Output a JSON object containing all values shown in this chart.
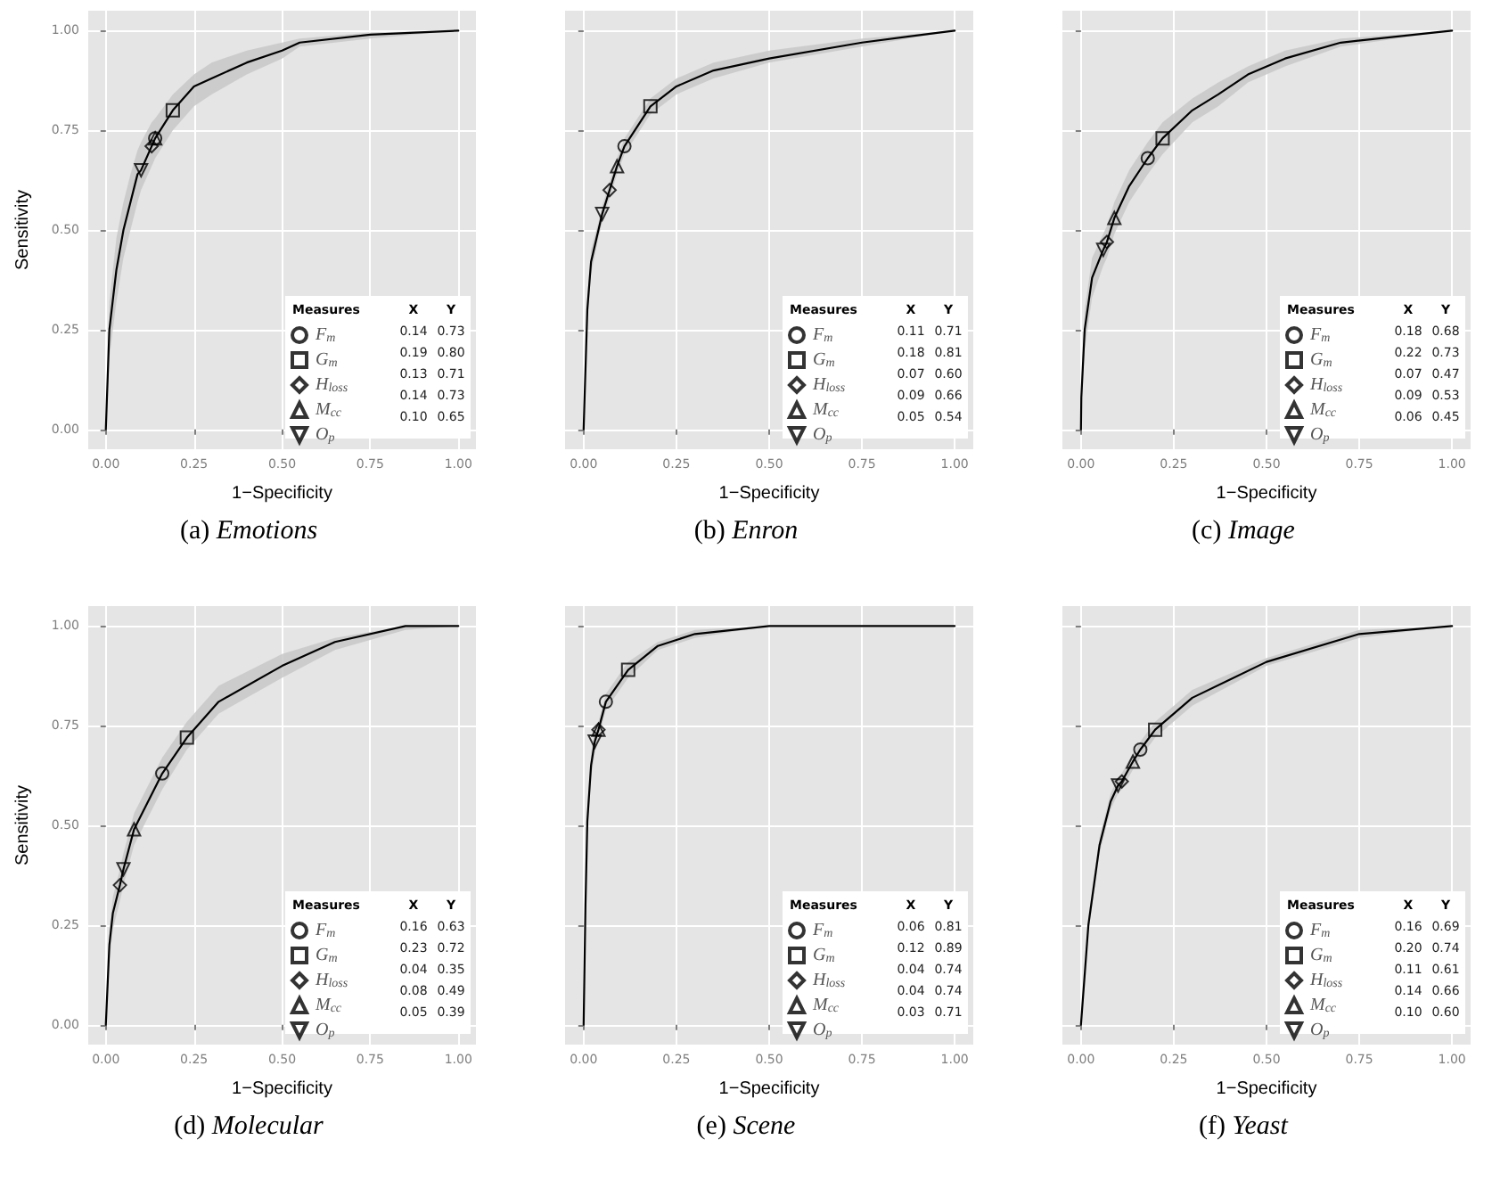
{
  "chart_data": [
    {
      "type": "line",
      "title": "(a) Emotions",
      "xlabel": "1−Specificity",
      "ylabel": "Sensitivity",
      "legend_title": "Measures",
      "annotations": [
        "X",
        "Y",
        "0.14",
        "0.73",
        "0.19",
        "0.80",
        "0.13",
        "0.71",
        "0.14",
        "0.73",
        "0.10",
        "0.65"
      ],
      "legend": "bottom right",
      "grid": true,
      "xlim": [
        -0.05,
        1.05
      ],
      "ylim": [
        -0.05,
        1.05
      ],
      "xticks": [
        {
          "value": 0,
          "label": "0.00"
        },
        {
          "value": 0.25,
          "label": "0.25"
        },
        {
          "value": 0.5,
          "label": "0.50"
        },
        {
          "value": 0.75,
          "label": "0.75"
        },
        {
          "value": 1,
          "label": "1.00"
        }
      ],
      "yticks": [
        {
          "value": 0,
          "label": "0.00"
        },
        {
          "value": 0.25,
          "label": "0.25"
        },
        {
          "value": 0.5,
          "label": "0.50"
        },
        {
          "value": 0.75,
          "label": "0.75"
        },
        {
          "value": 1,
          "label": "1.00"
        }
      ],
      "series": [
        {
          "color": "#000000",
          "x": [
            0,
            0.01,
            0.03,
            0.05,
            0.07,
            0.09,
            0.1,
            0.13,
            0.14,
            0.19,
            0.25,
            0.3,
            0.4,
            0.5,
            0.55,
            0.75,
            1
          ],
          "values": [
            0,
            0.25,
            0.4,
            0.5,
            0.57,
            0.64,
            0.65,
            0.71,
            0.73,
            0.8,
            0.86,
            0.88,
            0.92,
            0.95,
            0.97,
            0.99,
            1
          ],
          "lower": [
            0,
            0.18,
            0.32,
            0.43,
            0.5,
            0.57,
            0.6,
            0.66,
            0.68,
            0.75,
            0.81,
            0.84,
            0.89,
            0.93,
            0.96,
            0.98,
            1
          ],
          "upper": [
            0,
            0.32,
            0.48,
            0.57,
            0.64,
            0.7,
            0.72,
            0.77,
            0.78,
            0.84,
            0.89,
            0.92,
            0.95,
            0.97,
            0.98,
            0.995,
            1
          ]
        },
        {
          "type": "scatter",
          "name": "F$_{m}$",
          "marker": "circle",
          "color": "#000000",
          "x": [
            0.14
          ],
          "values": [
            0.73
          ]
        },
        {
          "type": "scatter",
          "name": "G$_{m}$",
          "marker": "square",
          "color": "#000000",
          "x": [
            0.19
          ],
          "values": [
            0.8
          ]
        },
        {
          "type": "scatter",
          "name": "H$_{loss}$",
          "marker": "diamond",
          "color": "#000000",
          "x": [
            0.13
          ],
          "values": [
            0.71
          ]
        },
        {
          "type": "scatter",
          "name": "M$_{cc}$",
          "marker": "triangle",
          "color": "#000000",
          "x": [
            0.14
          ],
          "values": [
            0.73
          ]
        },
        {
          "type": "scatter",
          "name": "O$_{p}$",
          "marker": "triangle-down",
          "color": "#000000",
          "x": [
            0.1
          ],
          "values": [
            0.65
          ]
        }
      ]
    },
    {
      "type": "line",
      "title": "(b) Enron",
      "xlabel": "1−Specificity",
      "legend_title": "Measures",
      "annotations": [
        "X",
        "Y",
        "0.11",
        "0.71",
        "0.18",
        "0.81",
        "0.07",
        "0.60",
        "0.09",
        "0.66",
        "0.05",
        "0.54"
      ],
      "legend": "bottom right",
      "grid": true,
      "tick_labels": "x",
      "xlim": [
        -0.05,
        1.05
      ],
      "ylim": [
        -0.05,
        1.05
      ],
      "xticks": [
        {
          "value": 0,
          "label": "0.00"
        },
        {
          "value": 0.25,
          "label": "0.25"
        },
        {
          "value": 0.5,
          "label": "0.50"
        },
        {
          "value": 0.75,
          "label": "0.75"
        },
        {
          "value": 1,
          "label": "1.00"
        }
      ],
      "yticks": [
        {
          "value": 0,
          "label": null
        },
        {
          "value": 0.25,
          "label": null
        },
        {
          "value": 0.5,
          "label": null
        },
        {
          "value": 0.75,
          "label": null
        },
        {
          "value": 1,
          "label": null
        }
      ],
      "series": [
        {
          "color": "#000000",
          "x": [
            0,
            0.01,
            0.02,
            0.04,
            0.05,
            0.07,
            0.09,
            0.11,
            0.18,
            0.25,
            0.35,
            0.5,
            0.75,
            1
          ],
          "values": [
            0,
            0.3,
            0.42,
            0.5,
            0.54,
            0.6,
            0.66,
            0.71,
            0.81,
            0.86,
            0.9,
            0.93,
            0.97,
            1
          ],
          "lower": [
            0,
            0.27,
            0.39,
            0.48,
            0.52,
            0.58,
            0.64,
            0.69,
            0.79,
            0.84,
            0.88,
            0.92,
            0.96,
            1
          ],
          "upper": [
            0,
            0.33,
            0.45,
            0.52,
            0.56,
            0.62,
            0.68,
            0.73,
            0.83,
            0.88,
            0.92,
            0.95,
            0.98,
            1
          ]
        },
        {
          "type": "scatter",
          "name": "F$_{m}$",
          "marker": "circle",
          "color": "#000000",
          "x": [
            0.11
          ],
          "values": [
            0.71
          ]
        },
        {
          "type": "scatter",
          "name": "G$_{m}$",
          "marker": "square",
          "color": "#000000",
          "x": [
            0.18
          ],
          "values": [
            0.81
          ]
        },
        {
          "type": "scatter",
          "name": "H$_{loss}$",
          "marker": "diamond",
          "color": "#000000",
          "x": [
            0.07
          ],
          "values": [
            0.6
          ]
        },
        {
          "type": "scatter",
          "name": "M$_{cc}$",
          "marker": "triangle",
          "color": "#000000",
          "x": [
            0.09
          ],
          "values": [
            0.66
          ]
        },
        {
          "type": "scatter",
          "name": "O$_{p}$",
          "marker": "triangle-down",
          "color": "#000000",
          "x": [
            0.05
          ],
          "values": [
            0.54
          ]
        }
      ]
    },
    {
      "type": "line",
      "title": "(c) Image",
      "xlabel": "1−Specificity",
      "legend_title": "Measures",
      "annotations": [
        "X",
        "Y",
        "0.18",
        "0.68",
        "0.22",
        "0.73",
        "0.07",
        "0.47",
        "0.09",
        "0.53",
        "0.06",
        "0.45"
      ],
      "legend": "bottom right",
      "grid": true,
      "tick_labels": "x",
      "xlim": [
        -0.05,
        1.05
      ],
      "ylim": [
        -0.05,
        1.05
      ],
      "xticks": [
        {
          "value": 0,
          "label": "0.00"
        },
        {
          "value": 0.25,
          "label": "0.25"
        },
        {
          "value": 0.5,
          "label": "0.50"
        },
        {
          "value": 0.75,
          "label": "0.75"
        },
        {
          "value": 1,
          "label": "1.00"
        }
      ],
      "yticks": [
        {
          "value": 0,
          "label": null
        },
        {
          "value": 0.25,
          "label": null
        },
        {
          "value": 0.5,
          "label": null
        },
        {
          "value": 0.75,
          "label": null
        },
        {
          "value": 1,
          "label": null
        }
      ],
      "series": [
        {
          "color": "#000000",
          "x": [
            0,
            0.001,
            0.01,
            0.03,
            0.06,
            0.07,
            0.09,
            0.13,
            0.18,
            0.22,
            0.3,
            0.37,
            0.45,
            0.55,
            0.7,
            1
          ],
          "values": [
            0,
            0.08,
            0.25,
            0.38,
            0.45,
            0.47,
            0.53,
            0.61,
            0.68,
            0.73,
            0.8,
            0.84,
            0.89,
            0.93,
            0.97,
            1
          ],
          "lower": [
            0,
            0.05,
            0.2,
            0.33,
            0.41,
            0.43,
            0.49,
            0.57,
            0.64,
            0.69,
            0.77,
            0.81,
            0.87,
            0.91,
            0.96,
            1
          ],
          "upper": [
            0,
            0.11,
            0.3,
            0.43,
            0.49,
            0.51,
            0.57,
            0.65,
            0.72,
            0.77,
            0.83,
            0.87,
            0.91,
            0.95,
            0.98,
            1
          ]
        },
        {
          "type": "scatter",
          "name": "F$_{m}$",
          "marker": "circle",
          "color": "#000000",
          "x": [
            0.18
          ],
          "values": [
            0.68
          ]
        },
        {
          "type": "scatter",
          "name": "G$_{m}$",
          "marker": "square",
          "color": "#000000",
          "x": [
            0.22
          ],
          "values": [
            0.73
          ]
        },
        {
          "type": "scatter",
          "name": "H$_{loss}$",
          "marker": "diamond",
          "color": "#000000",
          "x": [
            0.07
          ],
          "values": [
            0.47
          ]
        },
        {
          "type": "scatter",
          "name": "M$_{cc}$",
          "marker": "triangle",
          "color": "#000000",
          "x": [
            0.09
          ],
          "values": [
            0.53
          ]
        },
        {
          "type": "scatter",
          "name": "O$_{p}$",
          "marker": "triangle-down",
          "color": "#000000",
          "x": [
            0.06
          ],
          "values": [
            0.45
          ]
        }
      ]
    },
    {
      "type": "line",
      "title": "(d) Molecular",
      "xlabel": "1−Specificity",
      "ylabel": "Sensitivity",
      "legend_title": "Measures",
      "annotations": [
        "X",
        "Y",
        "0.16",
        "0.63",
        "0.23",
        "0.72",
        "0.04",
        "0.35",
        "0.08",
        "0.49",
        "0.05",
        "0.39"
      ],
      "legend": "bottom right",
      "grid": true,
      "xlim": [
        -0.05,
        1.05
      ],
      "ylim": [
        -0.05,
        1.05
      ],
      "xticks": [
        {
          "value": 0,
          "label": "0.00"
        },
        {
          "value": 0.25,
          "label": "0.25"
        },
        {
          "value": 0.5,
          "label": "0.50"
        },
        {
          "value": 0.75,
          "label": "0.75"
        },
        {
          "value": 1,
          "label": "1.00"
        }
      ],
      "yticks": [
        {
          "value": 0,
          "label": "0.00"
        },
        {
          "value": 0.25,
          "label": "0.25"
        },
        {
          "value": 0.5,
          "label": "0.50"
        },
        {
          "value": 0.75,
          "label": "0.75"
        },
        {
          "value": 1,
          "label": "1.00"
        }
      ],
      "series": [
        {
          "color": "#000000",
          "x": [
            0,
            0.01,
            0.02,
            0.04,
            0.05,
            0.08,
            0.16,
            0.23,
            0.32,
            0.5,
            0.65,
            0.85,
            1
          ],
          "values": [
            0,
            0.2,
            0.28,
            0.35,
            0.39,
            0.49,
            0.63,
            0.72,
            0.81,
            0.9,
            0.96,
            1,
            1
          ],
          "lower": [
            0,
            0.16,
            0.24,
            0.31,
            0.35,
            0.45,
            0.59,
            0.69,
            0.78,
            0.87,
            0.94,
            0.99,
            1
          ],
          "upper": [
            0,
            0.24,
            0.32,
            0.39,
            0.43,
            0.53,
            0.67,
            0.76,
            0.85,
            0.93,
            0.97,
            1,
            1
          ]
        },
        {
          "type": "scatter",
          "name": "F$_{m}$",
          "marker": "circle",
          "color": "#000000",
          "x": [
            0.16
          ],
          "values": [
            0.63
          ]
        },
        {
          "type": "scatter",
          "name": "G$_{m}$",
          "marker": "square",
          "color": "#000000",
          "x": [
            0.23
          ],
          "values": [
            0.72
          ]
        },
        {
          "type": "scatter",
          "name": "H$_{loss}$",
          "marker": "diamond",
          "color": "#000000",
          "x": [
            0.04
          ],
          "values": [
            0.35
          ]
        },
        {
          "type": "scatter",
          "name": "M$_{cc}$",
          "marker": "triangle",
          "color": "#000000",
          "x": [
            0.08
          ],
          "values": [
            0.49
          ]
        },
        {
          "type": "scatter",
          "name": "O$_{p}$",
          "marker": "triangle-down",
          "color": "#000000",
          "x": [
            0.05
          ],
          "values": [
            0.39
          ]
        }
      ]
    },
    {
      "type": "line",
      "title": "(e) Scene",
      "xlabel": "1−Specificity",
      "legend_title": "Measures",
      "annotations": [
        "X",
        "Y",
        "0.06",
        "0.81",
        "0.12",
        "0.89",
        "0.04",
        "0.74",
        "0.04",
        "0.74",
        "0.03",
        "0.71"
      ],
      "legend": "bottom right",
      "grid": true,
      "tick_labels": "x",
      "xlim": [
        -0.05,
        1.05
      ],
      "ylim": [
        -0.05,
        1.05
      ],
      "xticks": [
        {
          "value": 0,
          "label": "0.00"
        },
        {
          "value": 0.25,
          "label": "0.25"
        },
        {
          "value": 0.5,
          "label": "0.50"
        },
        {
          "value": 0.75,
          "label": "0.75"
        },
        {
          "value": 1,
          "label": "1.00"
        }
      ],
      "yticks": [
        {
          "value": 0,
          "label": null
        },
        {
          "value": 0.25,
          "label": null
        },
        {
          "value": 0.5,
          "label": null
        },
        {
          "value": 0.75,
          "label": null
        },
        {
          "value": 1,
          "label": null
        }
      ],
      "series": [
        {
          "color": "#000000",
          "x": [
            0,
            0.005,
            0.01,
            0.02,
            0.03,
            0.04,
            0.06,
            0.12,
            0.2,
            0.3,
            0.5,
            1
          ],
          "values": [
            0,
            0.3,
            0.51,
            0.65,
            0.71,
            0.74,
            0.81,
            0.89,
            0.95,
            0.98,
            1,
            1
          ],
          "lower": [
            0,
            0.27,
            0.48,
            0.62,
            0.68,
            0.72,
            0.79,
            0.87,
            0.94,
            0.97,
            1,
            1
          ],
          "upper": [
            0,
            0.33,
            0.54,
            0.68,
            0.74,
            0.76,
            0.83,
            0.91,
            0.96,
            0.99,
            1,
            1
          ]
        },
        {
          "type": "scatter",
          "name": "F$_{m}$",
          "marker": "circle",
          "color": "#000000",
          "x": [
            0.06
          ],
          "values": [
            0.81
          ]
        },
        {
          "type": "scatter",
          "name": "G$_{m}$",
          "marker": "square",
          "color": "#000000",
          "x": [
            0.12
          ],
          "values": [
            0.89
          ]
        },
        {
          "type": "scatter",
          "name": "H$_{loss}$",
          "marker": "diamond",
          "color": "#000000",
          "x": [
            0.04
          ],
          "values": [
            0.74
          ]
        },
        {
          "type": "scatter",
          "name": "M$_{cc}$",
          "marker": "triangle",
          "color": "#000000",
          "x": [
            0.04
          ],
          "values": [
            0.74
          ]
        },
        {
          "type": "scatter",
          "name": "O$_{p}$",
          "marker": "triangle-down",
          "color": "#000000",
          "x": [
            0.03
          ],
          "values": [
            0.71
          ]
        }
      ]
    },
    {
      "type": "line",
      "title": "(f) Yeast",
      "xlabel": "1−Specificity",
      "legend_title": "Measures",
      "annotations": [
        "X",
        "Y",
        "0.16",
        "0.69",
        "0.20",
        "0.74",
        "0.11",
        "0.61",
        "0.14",
        "0.66",
        "0.10",
        "0.60"
      ],
      "legend": "bottom right",
      "grid": true,
      "tick_labels": "x",
      "xlim": [
        -0.05,
        1.05
      ],
      "ylim": [
        -0.05,
        1.05
      ],
      "xticks": [
        {
          "value": 0,
          "label": "0.00"
        },
        {
          "value": 0.25,
          "label": "0.25"
        },
        {
          "value": 0.5,
          "label": "0.50"
        },
        {
          "value": 0.75,
          "label": "0.75"
        },
        {
          "value": 1,
          "label": "1.00"
        }
      ],
      "yticks": [
        {
          "value": 0,
          "label": null
        },
        {
          "value": 0.25,
          "label": null
        },
        {
          "value": 0.5,
          "label": null
        },
        {
          "value": 0.75,
          "label": null
        },
        {
          "value": 1,
          "label": null
        }
      ],
      "series": [
        {
          "color": "#000000",
          "x": [
            0,
            0.02,
            0.05,
            0.08,
            0.1,
            0.11,
            0.14,
            0.16,
            0.2,
            0.3,
            0.5,
            0.75,
            1
          ],
          "values": [
            0,
            0.25,
            0.45,
            0.56,
            0.6,
            0.61,
            0.66,
            0.69,
            0.74,
            0.82,
            0.91,
            0.98,
            1
          ],
          "lower": [
            0,
            0.23,
            0.43,
            0.54,
            0.58,
            0.59,
            0.64,
            0.67,
            0.72,
            0.8,
            0.9,
            0.97,
            1
          ],
          "upper": [
            0,
            0.27,
            0.47,
            0.58,
            0.62,
            0.63,
            0.68,
            0.71,
            0.76,
            0.84,
            0.92,
            0.99,
            1
          ]
        },
        {
          "type": "scatter",
          "name": "F$_{m}$",
          "marker": "circle",
          "color": "#000000",
          "x": [
            0.16
          ],
          "values": [
            0.69
          ]
        },
        {
          "type": "scatter",
          "name": "G$_{m}$",
          "marker": "square",
          "color": "#000000",
          "x": [
            0.2
          ],
          "values": [
            0.74
          ]
        },
        {
          "type": "scatter",
          "name": "H$_{loss}$",
          "marker": "diamond",
          "color": "#000000",
          "x": [
            0.11
          ],
          "values": [
            0.61
          ]
        },
        {
          "type": "scatter",
          "name": "M$_{cc}$",
          "marker": "triangle",
          "color": "#000000",
          "x": [
            0.14
          ],
          "values": [
            0.66
          ]
        },
        {
          "type": "scatter",
          "name": "O$_{p}$",
          "marker": "triangle-down",
          "color": "#000000",
          "x": [
            0.1
          ],
          "values": [
            0.6
          ]
        }
      ]
    }
  ]
}
